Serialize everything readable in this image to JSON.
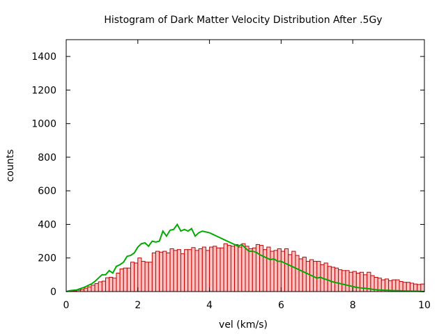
{
  "chart_data": {
    "type": "bar",
    "title": "Histogram of Dark Matter Velocity Distribution After .5Gy",
    "xlabel": "vel (km/s)",
    "ylabel": "counts",
    "xlim": [
      0,
      10
    ],
    "ylim": [
      0,
      1500
    ],
    "x_ticks": [
      0,
      2,
      4,
      6,
      8,
      10
    ],
    "y_ticks": [
      0,
      200,
      400,
      600,
      800,
      1000,
      1200,
      1400
    ],
    "grid": false,
    "legend": "none",
    "bin_width": 0.1,
    "colors": {
      "bar_fill": "#ffc0c0",
      "bar_stroke": "#c00000",
      "line": "#00aa00",
      "axis": "#000000"
    },
    "series": [
      {
        "type": "bar",
        "x": [
          0.05,
          0.15,
          0.25,
          0.35,
          0.45,
          0.55,
          0.65,
          0.75,
          0.85,
          0.95,
          1.05,
          1.15,
          1.25,
          1.35,
          1.45,
          1.55,
          1.65,
          1.75,
          1.85,
          1.95,
          2.05,
          2.15,
          2.25,
          2.35,
          2.45,
          2.55,
          2.65,
          2.75,
          2.85,
          2.95,
          3.05,
          3.15,
          3.25,
          3.35,
          3.45,
          3.55,
          3.65,
          3.75,
          3.85,
          3.95,
          4.05,
          4.15,
          4.25,
          4.35,
          4.45,
          4.55,
          4.65,
          4.75,
          4.85,
          4.95,
          5.05,
          5.15,
          5.25,
          5.35,
          5.45,
          5.55,
          5.65,
          5.75,
          5.85,
          5.95,
          6.05,
          6.15,
          6.25,
          6.35,
          6.45,
          6.55,
          6.65,
          6.75,
          6.85,
          6.95,
          7.05,
          7.15,
          7.25,
          7.35,
          7.45,
          7.55,
          7.65,
          7.75,
          7.85,
          7.95,
          8.05,
          8.15,
          8.25,
          8.35,
          8.45,
          8.55,
          8.65,
          8.75,
          8.85,
          8.95,
          9.05,
          9.15,
          9.25,
          9.35,
          9.45,
          9.55,
          9.65,
          9.75,
          9.85,
          9.95
        ],
        "values": [
          0,
          2,
          4,
          8,
          12,
          20,
          28,
          38,
          48,
          58,
          62,
          82,
          85,
          80,
          110,
          135,
          140,
          140,
          175,
          170,
          200,
          180,
          175,
          175,
          230,
          240,
          235,
          240,
          230,
          255,
          245,
          250,
          225,
          250,
          250,
          262,
          245,
          255,
          265,
          245,
          265,
          270,
          260,
          260,
          285,
          275,
          270,
          280,
          265,
          285,
          270,
          255,
          260,
          280,
          275,
          250,
          265,
          240,
          245,
          255,
          240,
          255,
          220,
          240,
          215,
          195,
          205,
          180,
          190,
          180,
          180,
          160,
          170,
          150,
          145,
          140,
          130,
          125,
          125,
          115,
          120,
          110,
          115,
          100,
          115,
          95,
          85,
          80,
          70,
          75,
          65,
          70,
          70,
          60,
          55,
          55,
          50,
          45,
          42,
          45
        ]
      },
      {
        "type": "line",
        "x": [
          0.0,
          0.1,
          0.2,
          0.3,
          0.4,
          0.5,
          0.6,
          0.7,
          0.8,
          0.9,
          1.0,
          1.1,
          1.2,
          1.3,
          1.4,
          1.5,
          1.6,
          1.7,
          1.8,
          1.9,
          2.0,
          2.1,
          2.2,
          2.3,
          2.4,
          2.5,
          2.6,
          2.7,
          2.8,
          2.9,
          3.0,
          3.1,
          3.2,
          3.3,
          3.4,
          3.5,
          3.6,
          3.7,
          3.8,
          3.9,
          4.0,
          4.1,
          4.2,
          4.3,
          4.4,
          4.5,
          4.6,
          4.7,
          4.8,
          4.9,
          5.0,
          5.1,
          5.2,
          5.3,
          5.4,
          5.5,
          5.6,
          5.7,
          5.8,
          5.9,
          6.0,
          6.1,
          6.2,
          6.3,
          6.4,
          6.5,
          6.6,
          6.7,
          6.8,
          6.9,
          7.0,
          7.1,
          7.2,
          7.3,
          7.4,
          7.5,
          7.6,
          7.7,
          7.8,
          7.9,
          8.0,
          8.1,
          8.2,
          8.3,
          8.4,
          8.5,
          8.6,
          8.7,
          8.8,
          8.9,
          9.0,
          9.1,
          9.2,
          9.3,
          9.4,
          9.5,
          9.6,
          9.7,
          9.8,
          9.9,
          10.0
        ],
        "values": [
          0,
          5,
          8,
          10,
          18,
          25,
          35,
          45,
          60,
          80,
          100,
          100,
          125,
          110,
          150,
          160,
          175,
          210,
          215,
          230,
          265,
          285,
          290,
          270,
          300,
          295,
          300,
          360,
          330,
          365,
          370,
          400,
          360,
          370,
          360,
          375,
          330,
          350,
          360,
          355,
          350,
          340,
          330,
          320,
          310,
          300,
          290,
          280,
          270,
          280,
          260,
          240,
          240,
          235,
          220,
          210,
          200,
          190,
          195,
          180,
          180,
          170,
          160,
          150,
          140,
          130,
          120,
          110,
          100,
          90,
          80,
          85,
          75,
          70,
          60,
          55,
          50,
          45,
          40,
          35,
          30,
          25,
          22,
          20,
          18,
          15,
          12,
          10,
          9,
          8,
          7,
          6,
          5,
          5,
          4,
          3,
          3,
          2,
          2,
          1,
          0
        ]
      }
    ]
  }
}
